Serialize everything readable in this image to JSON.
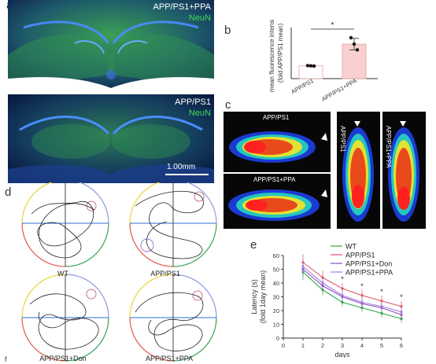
{
  "panels": {
    "a": {
      "letter": "a",
      "top_labels": [
        "APP/PS1+PPA",
        "NeuN"
      ],
      "bottom_labels": [
        "APP/PS1",
        "NeuN"
      ],
      "scale_bar": "1.00mm"
    },
    "b": {
      "letter": "b"
    },
    "c": {
      "letter": "c",
      "left_labels": [
        "APP/PS1",
        "APP/PS1+PPA"
      ],
      "right_labels": [
        "APP/PS1",
        "APP/PS1+PPA"
      ]
    },
    "d": {
      "letter": "d",
      "labels": [
        "WT",
        "APP/PS1",
        "APP/PS1+Don",
        "APP/PS1+PPA"
      ]
    },
    "e": {
      "letter": "e"
    },
    "f": {
      "letter": "f"
    }
  },
  "colors": {
    "neun_green": "#3fae4a",
    "dapi_blue": "#2a5bd7",
    "ppa_bar": "#f8d0d0",
    "wt": "#2ea84a",
    "app": "#e0556a",
    "don": "#8a4fb8",
    "ppa": "#a57ae0"
  },
  "chart_data": [
    {
      "type": "bar",
      "ylabel": "mean fluorescence intensity\n(fold APP/PS1 mean)",
      "categories": [
        "APP/PS1",
        "APP/PS1+PPA"
      ],
      "values": [
        1.0,
        2.7
      ],
      "errors": [
        0.05,
        0.45
      ],
      "points": [
        [
          1.02,
          1.0,
          0.98
        ],
        [
          3.2,
          2.7,
          2.25
        ]
      ],
      "ylim": [
        0,
        4
      ],
      "significance": "*"
    },
    {
      "type": "line",
      "xlabel": "days",
      "ylabel": "Latency (s)\n(fold 1day mean)",
      "x": [
        1,
        2,
        3,
        4,
        5,
        6
      ],
      "xlim": [
        0,
        6
      ],
      "ylim": [
        0,
        60
      ],
      "yticks": [
        0,
        10,
        20,
        30,
        40,
        50,
        60
      ],
      "series": [
        {
          "name": "WT",
          "values": [
            48,
            35,
            26,
            22,
            18,
            14
          ],
          "err": [
            6,
            4,
            3,
            3,
            3,
            3
          ]
        },
        {
          "name": "APP/PS1",
          "values": [
            55,
            44,
            36,
            31,
            27,
            23
          ],
          "err": [
            6,
            5,
            4,
            4,
            4,
            4
          ]
        },
        {
          "name": "APP/PS1+Don",
          "values": [
            50,
            38,
            30,
            25,
            22,
            17
          ],
          "err": [
            5,
            4,
            4,
            4,
            3,
            3
          ]
        },
        {
          "name": "APP/PS1+PPA",
          "values": [
            52,
            40,
            31,
            26,
            23,
            19
          ],
          "err": [
            5,
            4,
            4,
            3,
            3,
            3
          ]
        }
      ],
      "significance": [
        {
          "x": 3,
          "label": "*"
        },
        {
          "x": 4,
          "label": "*"
        },
        {
          "x": 5,
          "label": "*"
        },
        {
          "x": 6,
          "label": "*"
        }
      ]
    }
  ]
}
